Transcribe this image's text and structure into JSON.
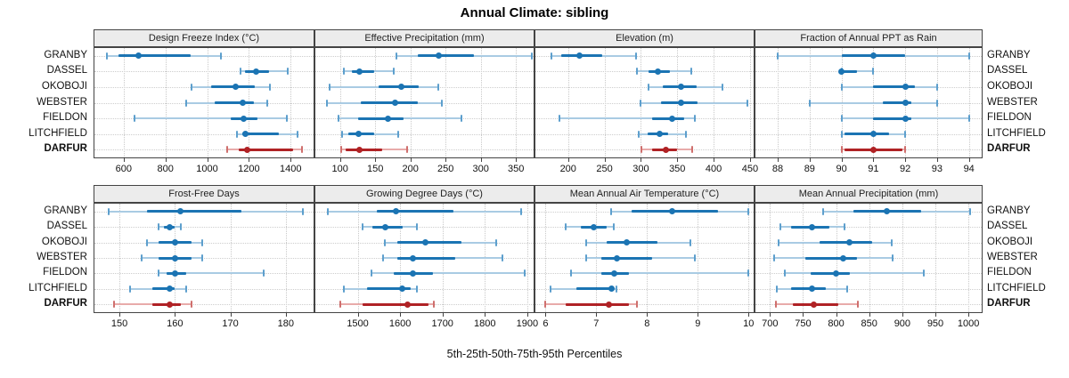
{
  "title": "Annual Climate: sibling",
  "caption": "5th-25th-50th-75th-95th Percentiles",
  "colors": {
    "blue": "#1b74b3",
    "blue_mid": "#5d9fcd",
    "blue_light": "#a9cbe3",
    "red": "#b02225",
    "red_mid": "#cf6f6d",
    "red_light": "#e8abaa",
    "strip_bg": "#ececec",
    "border": "#444444",
    "grid": "#c9c9c9"
  },
  "chart_data": {
    "type": "scatter",
    "subtype": "percentile-interval-dotplot",
    "grid": "dotted",
    "legend_position": "none",
    "percentile_order": [
      "5th",
      "25th",
      "50th",
      "75th",
      "95th"
    ],
    "categories": [
      "GRANBY",
      "DASSEL",
      "OKOBOJI",
      "WEBSTER",
      "FIELDON",
      "LITCHFIELD",
      "DARFUR"
    ],
    "highlight_category": "DARFUR",
    "panels": [
      {
        "row": 0,
        "col": 0,
        "title": "Design Freeze Index (°C)",
        "xlim": [
          460,
          1510
        ],
        "ticks": [
          600,
          800,
          1000,
          1200,
          1400
        ],
        "values": [
          [
            520,
            575,
            670,
            920,
            1065
          ],
          [
            1160,
            1180,
            1235,
            1295,
            1385
          ],
          [
            925,
            1020,
            1135,
            1230,
            1300
          ],
          [
            900,
            1035,
            1170,
            1225,
            1290
          ],
          [
            650,
            1115,
            1175,
            1240,
            1380
          ],
          [
            1145,
            1170,
            1185,
            1345,
            1435
          ],
          [
            1095,
            1150,
            1190,
            1410,
            1455
          ]
        ]
      },
      {
        "row": 0,
        "col": 1,
        "title": "Effective Precipitation (mm)",
        "xlim": [
          65,
          375
        ],
        "ticks": [
          100,
          150,
          200,
          250,
          300,
          350
        ],
        "values": [
          [
            180,
            210,
            240,
            290,
            372
          ],
          [
            106,
            117,
            128,
            148,
            176
          ],
          [
            85,
            155,
            187,
            212,
            240
          ],
          [
            82,
            130,
            178,
            210,
            245
          ],
          [
            98,
            126,
            168,
            190,
            272
          ],
          [
            103,
            112,
            126,
            148,
            183
          ],
          [
            102,
            108,
            128,
            160,
            195
          ]
        ]
      },
      {
        "row": 0,
        "col": 2,
        "title": "Elevation (m)",
        "xlim": [
          155,
          455
        ],
        "ticks": [
          200,
          250,
          300,
          350,
          400,
          450
        ],
        "values": [
          [
            177,
            190,
            215,
            247,
            293
          ],
          [
            294,
            311,
            323,
            340,
            369
          ],
          [
            311,
            330,
            355,
            377,
            412
          ],
          [
            300,
            328,
            355,
            378,
            447
          ],
          [
            188,
            315,
            343,
            360,
            374
          ],
          [
            297,
            309,
            326,
            337,
            362
          ],
          [
            301,
            316,
            334,
            350,
            370
          ]
        ]
      },
      {
        "row": 0,
        "col": 3,
        "title": "Fraction of Annual PPT as Rain",
        "xlim": [
          87.3,
          94.4
        ],
        "ticks": [
          88,
          89,
          90,
          91,
          92,
          93,
          94
        ],
        "values": [
          [
            88,
            90,
            91,
            92,
            94
          ],
          [
            90,
            90,
            90,
            90.5,
            91
          ],
          [
            90,
            91,
            92,
            92.3,
            93
          ],
          [
            89,
            91.3,
            92,
            92.2,
            93
          ],
          [
            90,
            91,
            92,
            92.2,
            94
          ],
          [
            90,
            90.1,
            91,
            91.5,
            92
          ],
          [
            90,
            90.1,
            91,
            91.9,
            92
          ]
        ]
      },
      {
        "row": 1,
        "col": 0,
        "title": "Frost-Free Days",
        "xlim": [
          145.5,
          185
        ],
        "ticks": [
          150,
          160,
          170,
          180
        ],
        "values": [
          [
            148,
            155,
            161,
            172,
            183
          ],
          [
            157,
            158,
            159,
            160,
            161
          ],
          [
            155,
            157,
            160,
            163,
            165
          ],
          [
            154,
            157,
            160,
            163,
            165
          ],
          [
            157,
            158.5,
            160,
            162,
            176
          ],
          [
            152,
            156,
            159,
            160,
            162
          ],
          [
            149,
            156,
            159,
            161,
            163
          ]
        ]
      },
      {
        "row": 1,
        "col": 1,
        "title": "Growing Degree Days (°C)",
        "xlim": [
          1400,
          1915
        ],
        "ticks": [
          1500,
          1600,
          1700,
          1800,
          1900
        ],
        "values": [
          [
            1430,
            1545,
            1590,
            1725,
            1885
          ],
          [
            1512,
            1535,
            1565,
            1607,
            1639
          ],
          [
            1563,
            1593,
            1660,
            1744,
            1826
          ],
          [
            1560,
            1593,
            1630,
            1730,
            1842
          ],
          [
            1533,
            1586,
            1630,
            1677,
            1895
          ],
          [
            1468,
            1522,
            1605,
            1624,
            1639
          ],
          [
            1459,
            1511,
            1618,
            1666,
            1680
          ]
        ]
      },
      {
        "row": 1,
        "col": 2,
        "title": "Mean Annual Air Temperature (°C)",
        "xlim": [
          5.8,
          10.1
        ],
        "ticks": [
          6,
          7,
          8,
          9,
          10
        ],
        "values": [
          [
            7.3,
            7.7,
            8.5,
            9.4,
            10
          ],
          [
            6.4,
            6.7,
            6.95,
            7.2,
            7.35
          ],
          [
            6.8,
            7.2,
            7.6,
            8.2,
            8.85
          ],
          [
            6.8,
            7.1,
            7.4,
            8.1,
            8.95
          ],
          [
            6.5,
            7.1,
            7.35,
            7.65,
            10
          ],
          [
            6.1,
            6.6,
            7.3,
            7.35,
            7.4
          ],
          [
            6,
            6.4,
            7.25,
            7.65,
            7.8
          ]
        ]
      },
      {
        "row": 1,
        "col": 3,
        "title": "Mean Annual Precipitation (mm)",
        "xlim": [
          678,
          1020
        ],
        "ticks": [
          700,
          750,
          800,
          850,
          900,
          950,
          1000
        ],
        "values": [
          [
            780,
            826,
            877,
            928,
            1002
          ],
          [
            716,
            732,
            763,
            790,
            813
          ],
          [
            713,
            775,
            820,
            855,
            884
          ],
          [
            706,
            754,
            810,
            832,
            885
          ],
          [
            722,
            761,
            800,
            821,
            932
          ],
          [
            710,
            732,
            763,
            785,
            817
          ],
          [
            709,
            734,
            766,
            803,
            833
          ]
        ]
      }
    ]
  }
}
